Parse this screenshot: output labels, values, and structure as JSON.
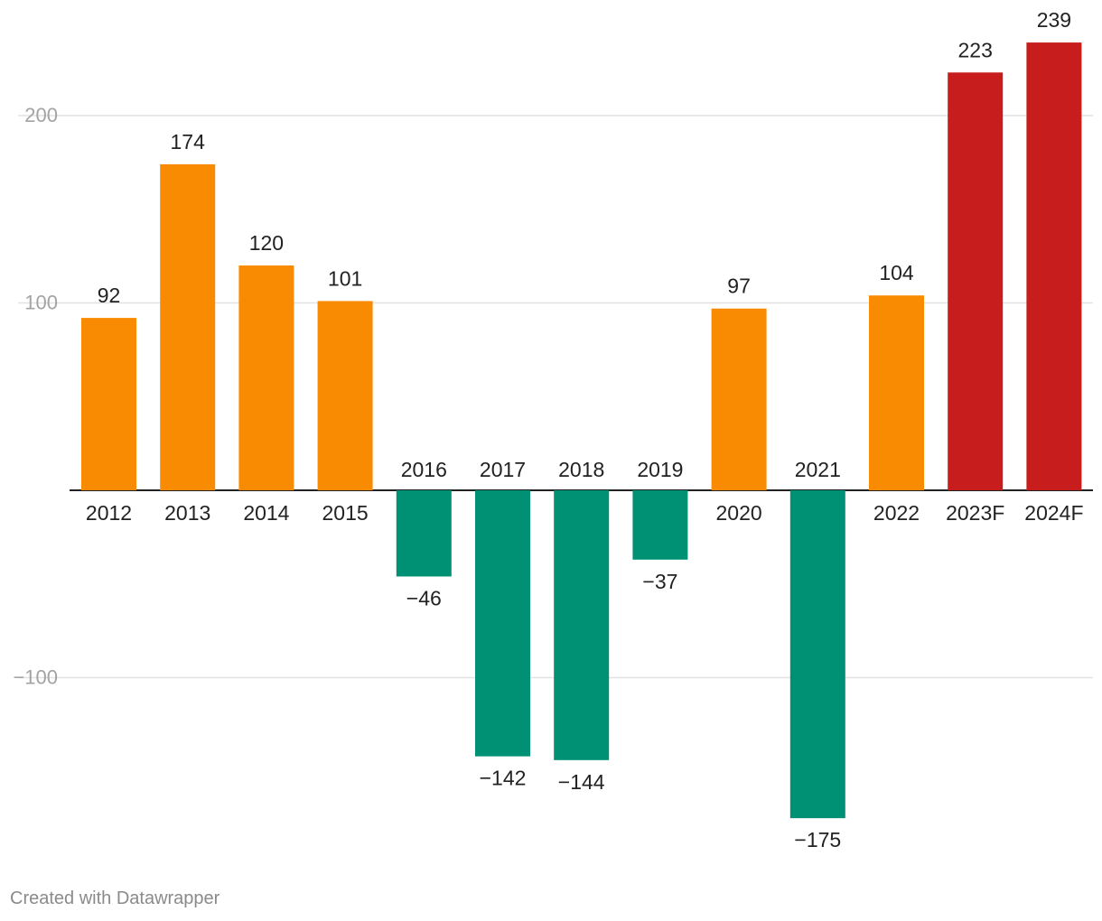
{
  "chart_data": {
    "type": "bar",
    "title": "",
    "xlabel": "",
    "ylabel": "",
    "ylim": [
      -195,
      245
    ],
    "y_ticks": [
      -100,
      100,
      200
    ],
    "y_tick_labels": [
      "−100",
      "100",
      "200"
    ],
    "categories": [
      "2012",
      "2013",
      "2014",
      "2015",
      "2016",
      "2017",
      "2018",
      "2019",
      "2020",
      "2021",
      "2022",
      "2023F",
      "2024F"
    ],
    "values": [
      92,
      174,
      120,
      101,
      -46,
      -142,
      -144,
      -37,
      97,
      -175,
      104,
      223,
      239
    ],
    "value_labels": [
      "92",
      "174",
      "120",
      "101",
      "−46",
      "−142",
      "−144",
      "−37",
      "97",
      "−175",
      "104",
      "223",
      "239"
    ],
    "colors": [
      "#f98b02",
      "#f98b02",
      "#f98b02",
      "#f98b02",
      "#009175",
      "#009175",
      "#009175",
      "#009175",
      "#f98b02",
      "#009175",
      "#f98b02",
      "#c71e1d",
      "#c71e1d"
    ],
    "grid": true
  },
  "footer": {
    "credit": "Created with Datawrapper"
  }
}
